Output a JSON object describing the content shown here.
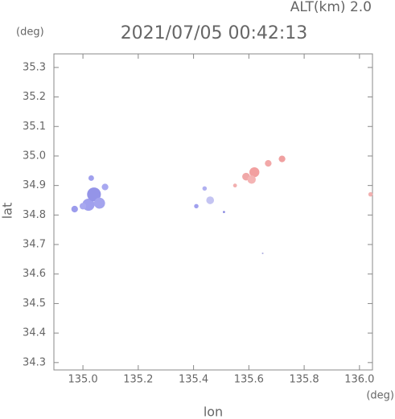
{
  "chart_data": {
    "type": "scatter",
    "title": "2021/07/05 00:42:13",
    "altitude_label": "ALT(km) 2.0",
    "y_unit": "(deg)",
    "x_unit": "(deg)",
    "xlabel": "lon",
    "ylabel": "lat",
    "xlim": [
      134.895,
      136.047
    ],
    "ylim": [
      34.275,
      35.346
    ],
    "xticks": [
      {
        "value": 135,
        "label": "135.0"
      },
      135.2,
      135.4,
      135.6,
      135.8,
      {
        "value": 136,
        "label": "136.0"
      }
    ],
    "yticks": [
      34.3,
      34.4,
      34.5,
      34.6,
      34.7,
      34.8,
      34.9,
      {
        "value": 35,
        "label": "35.0"
      },
      35.1,
      35.2,
      35.3
    ],
    "x": [
      134.97,
      135.02,
      135.04,
      135.06,
      135.08,
      135.03,
      135.0,
      135.41,
      135.46,
      135.44,
      135.51,
      135.55,
      135.59,
      135.62,
      135.61,
      135.67,
      135.72,
      136.04,
      135.65
    ],
    "y": [
      34.82,
      34.835,
      34.87,
      34.84,
      34.895,
      34.925,
      34.83,
      34.83,
      34.85,
      34.89,
      34.81,
      34.9,
      34.93,
      34.945,
      34.92,
      34.975,
      34.99,
      34.87,
      34.67
    ],
    "sizes": [
      0.012,
      0.022,
      0.025,
      0.02,
      0.012,
      0.01,
      0.012,
      0.008,
      0.014,
      0.008,
      0.004,
      0.007,
      0.014,
      0.018,
      0.015,
      0.012,
      0.012,
      0.008,
      0.003
    ],
    "colors": [
      "#9c9cec",
      "#a0a0ee",
      "#9494e8",
      "#a4a4ee",
      "#a8a8f0",
      "#a0a0ee",
      "#a8a8f0",
      "#a0a0ee",
      "#c4c4f2",
      "#b0b0f0",
      "#8888e0",
      "#f2b0b0",
      "#f0a8a8",
      "#f2a0a0",
      "#f4b4b4",
      "#f2a8a8",
      "#f0a0a0",
      "#f2b0b0",
      "#b0b0e0"
    ]
  }
}
